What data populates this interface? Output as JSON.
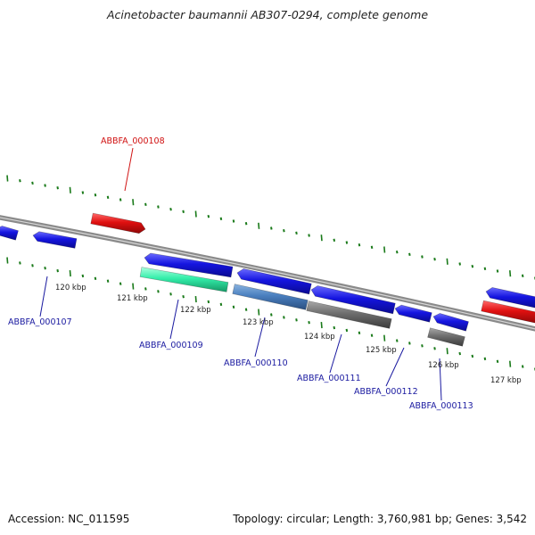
{
  "title": "Acinetobacter baumannii AB307-0294, complete genome",
  "footer": {
    "accession": "Accession: NC_011595",
    "topology": "Topology: circular; Length: 3,760,981 bp; Genes: 3,542"
  },
  "colors": {
    "backbone": "#8a8a8a",
    "tick": "#1a7a1a",
    "forward_gene": "#1515e0",
    "highlight_gene": "#e01010",
    "rna_gene": "#33eeaa",
    "other_gene": "#4a7fbf",
    "pseudo_gene": "#6e6e6e",
    "label_blue": "#1a1aa0",
    "label_red": "#d01010"
  },
  "scale_labels": [
    "120 kbp",
    "121 kbp",
    "122 kbp",
    "123 kbp",
    "124 kbp",
    "125 kbp",
    "126 kbp",
    "127 kbp"
  ],
  "gene_labels": [
    {
      "id": "ABBFA_000107",
      "color": "label_blue"
    },
    {
      "id": "ABBFA_000108",
      "color": "label_red"
    },
    {
      "id": "ABBFA_000109",
      "color": "label_blue"
    },
    {
      "id": "ABBFA_000110",
      "color": "label_blue"
    },
    {
      "id": "ABBFA_000111",
      "color": "label_blue"
    },
    {
      "id": "ABBFA_000112",
      "color": "label_blue"
    },
    {
      "id": "ABBFA_000113",
      "color": "label_blue"
    }
  ]
}
